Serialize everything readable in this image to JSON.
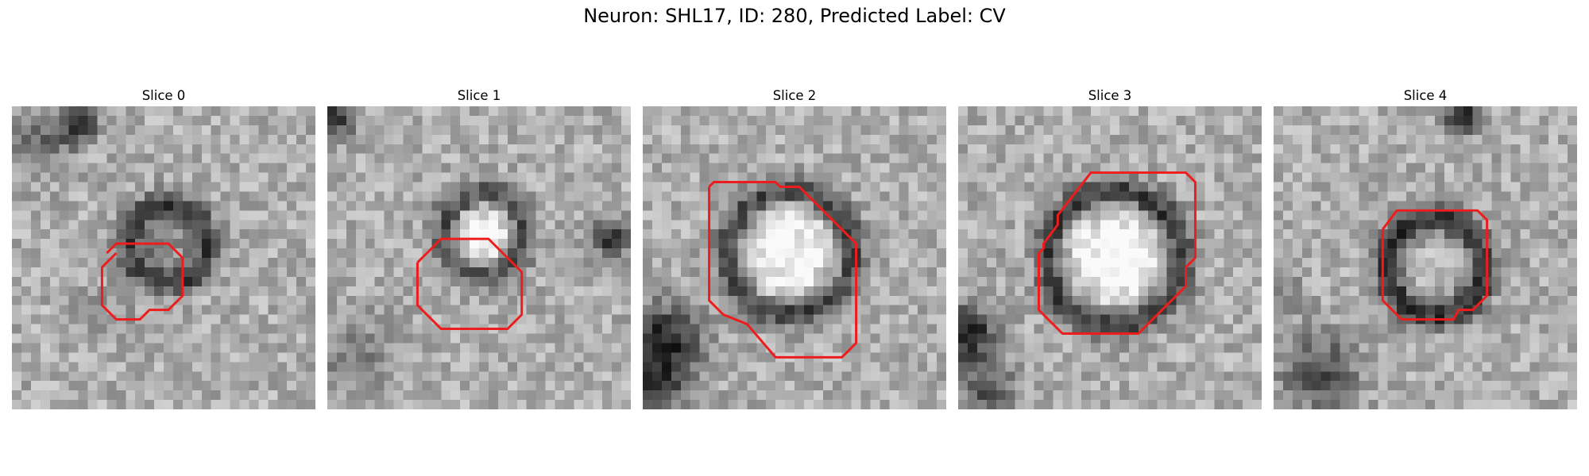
{
  "figure": {
    "title": "Neuron: SHL17, ID: 280, Predicted Label: CV"
  },
  "colors": {
    "contour": "#ee1c1c"
  },
  "panels": [
    {
      "title": "Slice 0"
    },
    {
      "title": "Slice 1"
    },
    {
      "title": "Slice 2"
    },
    {
      "title": "Slice 3"
    },
    {
      "title": "Slice 4"
    }
  ]
}
